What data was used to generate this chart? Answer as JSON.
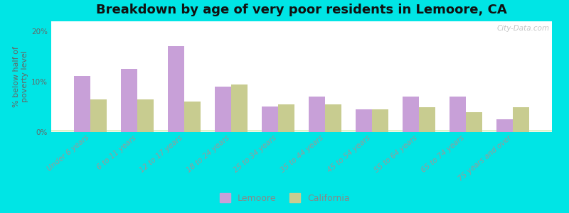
{
  "categories": [
    "Under 6 years",
    "6 to 11 years",
    "12 to 17 years",
    "18 to 24 years",
    "25 to 34 years",
    "35 to 44 years",
    "45 to 54 years",
    "55 to 64 years",
    "65 to 74 years",
    "75 years and over"
  ],
  "lemoore_values": [
    11.2,
    12.6,
    17.0,
    9.0,
    5.1,
    7.0,
    4.5,
    7.0,
    7.0,
    2.5
  ],
  "california_values": [
    6.5,
    6.5,
    6.0,
    9.5,
    5.5,
    5.5,
    4.5,
    5.0,
    4.0,
    5.0
  ],
  "lemoore_color": "#c8a0d8",
  "california_color": "#c8cc90",
  "title": "Breakdown by age of very poor residents in Lemoore, CA",
  "ylabel": "% below half of\npoverty level",
  "ylim": [
    0,
    22
  ],
  "yticks": [
    0,
    10,
    20
  ],
  "ytick_labels": [
    "0%",
    "10%",
    "20%"
  ],
  "background_outer": "#00e5e5",
  "bar_width": 0.35,
  "title_fontsize": 13,
  "axis_fontsize": 8,
  "tick_fontsize": 7.5,
  "legend_labels": [
    "Lemoore",
    "California"
  ],
  "watermark": "City-Data.com"
}
